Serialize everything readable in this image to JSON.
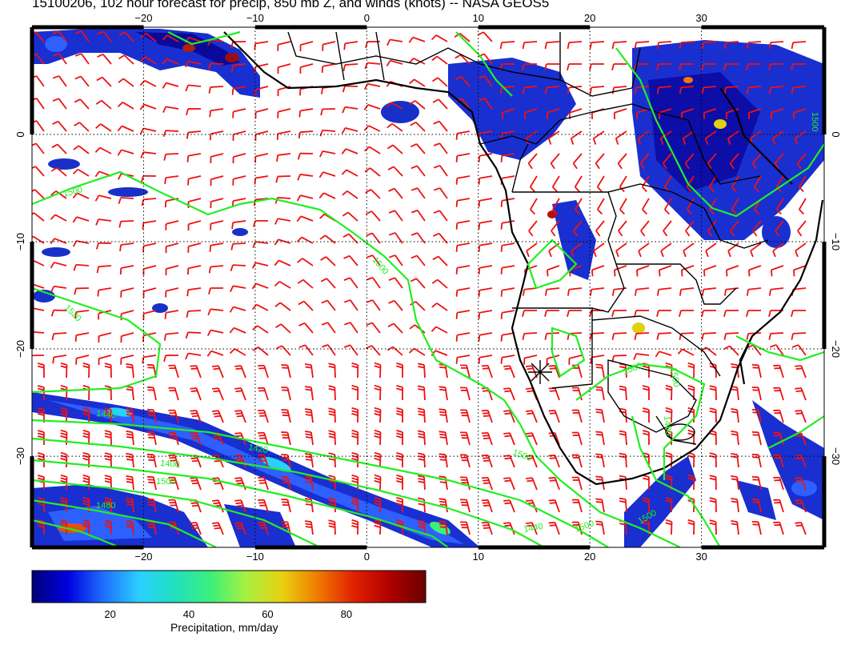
{
  "title": "15100206, 102 hour forecast for precip, 850 mb Z, and winds (knots) -- NASA GEOS5",
  "map": {
    "lon_ticks": [
      "−20",
      "−10",
      "0",
      "10",
      "20",
      "30"
    ],
    "lat_ticks": [
      "0",
      "−10",
      "−20",
      "−30"
    ],
    "lon_range": [
      -30,
      41
    ],
    "lat_range": [
      -38.5,
      10
    ],
    "contour_labels": [
      "1500",
      "1500",
      "1520",
      "1500",
      "1500",
      "1500",
      "1500",
      "1480",
      "1440",
      "1420",
      "1400",
      "1500",
      "1480",
      "1440",
      "1500",
      "1500"
    ],
    "marker": "star-marker",
    "colors": {
      "contour": "#22ee22",
      "barb": "#ee1111",
      "coast": "#000000",
      "grid": "#000000"
    }
  },
  "colorbar": {
    "ticks": [
      "20",
      "40",
      "60",
      "80"
    ],
    "label": "Precipitation, mm/day",
    "range": [
      0,
      100
    ],
    "colors": [
      "#00007a",
      "#0000dd",
      "#1f6fff",
      "#2ad0ff",
      "#20e0c0",
      "#3cf07a",
      "#a8f040",
      "#e8d010",
      "#f07a00",
      "#e02000",
      "#b00000",
      "#6a0000"
    ]
  }
}
